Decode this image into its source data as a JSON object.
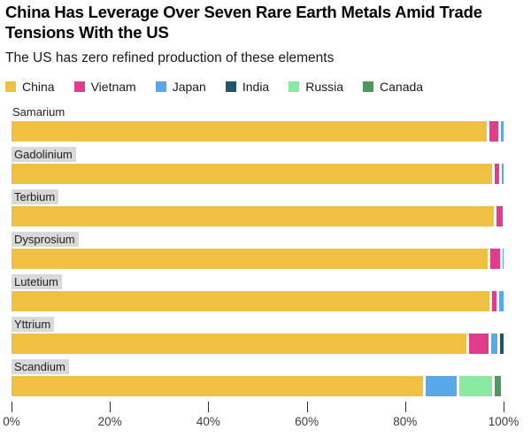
{
  "header": {
    "title_line1": "China Has Leverage Over Seven Rare Earth Metals Amid Trade",
    "title_line2": "Tensions With the US",
    "subtitle": "The US has zero refined production of these elements"
  },
  "legend": {
    "items": [
      {
        "label": "China",
        "color": "#EFC042"
      },
      {
        "label": "Vietnam",
        "color": "#E23D8C"
      },
      {
        "label": "Japan",
        "color": "#58A8EA"
      },
      {
        "label": "India",
        "color": "#20556E"
      },
      {
        "label": "Russia",
        "color": "#89EAA1"
      },
      {
        "label": "Canada",
        "color": "#4C9A5C"
      }
    ]
  },
  "chart_data": {
    "type": "bar",
    "orientation": "horizontal",
    "stacked": true,
    "unit": "percent share of refined production",
    "series_colors": {
      "China": "#EFC042",
      "Vietnam": "#E23D8C",
      "Japan": "#58A8EA",
      "India": "#20556E",
      "Russia": "#89EAA1",
      "Canada": "#4C9A5C"
    },
    "categories": [
      "Samarium",
      "Gadolinium",
      "Terbium",
      "Dysprosium",
      "Lutetium",
      "Yttrium",
      "Scandium"
    ],
    "rows": [
      {
        "element": "Samarium",
        "label_highlight": false,
        "segments": [
          {
            "name": "China",
            "value": 96.6
          },
          {
            "name": "Vietnam",
            "value": 1.8
          },
          {
            "name": "Japan",
            "value": 0.5
          }
        ]
      },
      {
        "element": "Gadolinium",
        "label_highlight": true,
        "segments": [
          {
            "name": "China",
            "value": 97.6
          },
          {
            "name": "Vietnam",
            "value": 1.0
          },
          {
            "name": "Japan",
            "value": 0.3
          }
        ]
      },
      {
        "element": "Terbium",
        "label_highlight": true,
        "segments": [
          {
            "name": "China",
            "value": 98.0
          },
          {
            "name": "Vietnam",
            "value": 1.2
          }
        ]
      },
      {
        "element": "Dysprosium",
        "label_highlight": true,
        "segments": [
          {
            "name": "China",
            "value": 96.8
          },
          {
            "name": "Vietnam",
            "value": 1.9
          },
          {
            "name": "Japan",
            "value": 0.3
          }
        ]
      },
      {
        "element": "Lutetium",
        "label_highlight": true,
        "segments": [
          {
            "name": "China",
            "value": 97.2
          },
          {
            "name": "Vietnam",
            "value": 0.8
          },
          {
            "name": "Japan",
            "value": 0.9
          }
        ]
      },
      {
        "element": "Yttrium",
        "label_highlight": true,
        "segments": [
          {
            "name": "China",
            "value": 92.5
          },
          {
            "name": "Vietnam",
            "value": 3.9
          },
          {
            "name": "Japan",
            "value": 1.2
          },
          {
            "name": "India",
            "value": 0.7
          }
        ]
      },
      {
        "element": "Scandium",
        "label_highlight": true,
        "segments": [
          {
            "name": "China",
            "value": 83.6
          },
          {
            "name": "Japan",
            "value": 6.3
          },
          {
            "name": "Russia",
            "value": 6.6
          },
          {
            "name": "Canada",
            "value": 1.4
          }
        ]
      }
    ],
    "x_axis": {
      "min": 0,
      "max": 100,
      "tick_labels": [
        "0%",
        "20%",
        "40%",
        "60%",
        "80%",
        "100%"
      ]
    },
    "grid": false,
    "legend_position": "top"
  }
}
